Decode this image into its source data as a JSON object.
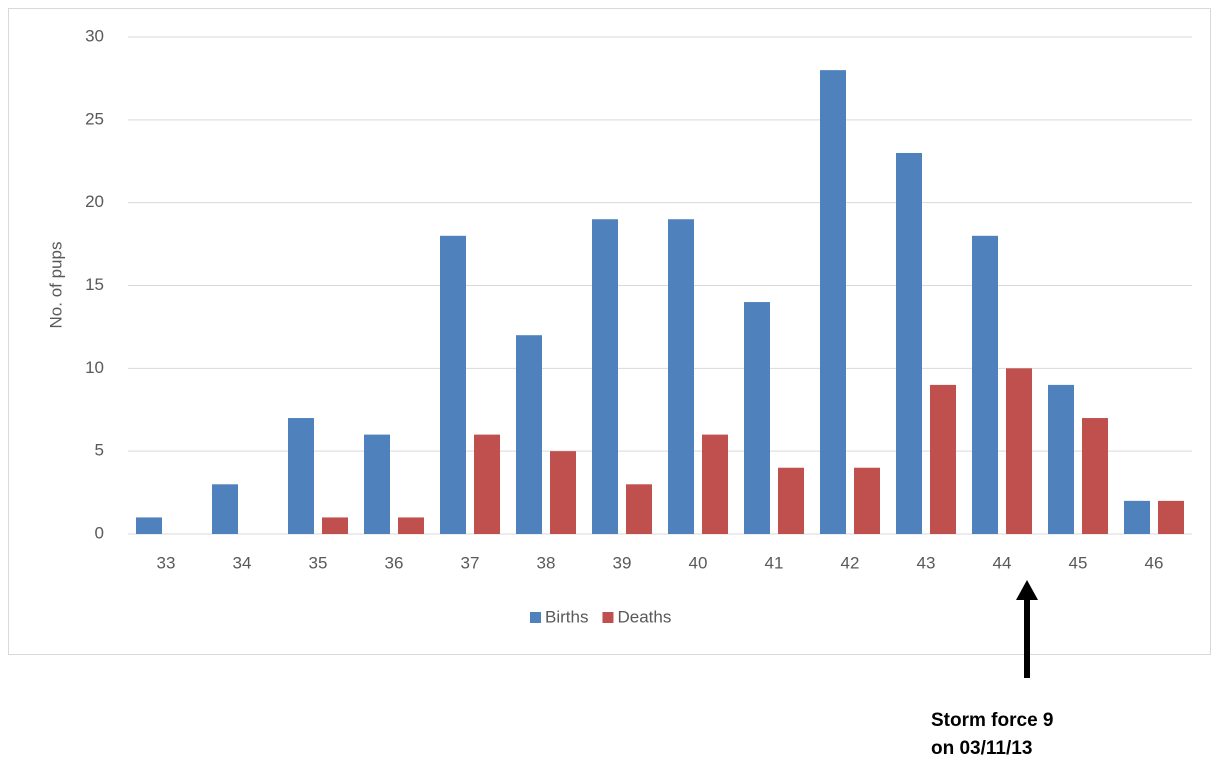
{
  "chart_data": {
    "type": "bar",
    "y_label": "No. of pups",
    "categories": [
      "33",
      "34",
      "35",
      "36",
      "37",
      "38",
      "39",
      "40",
      "41",
      "42",
      "43",
      "44",
      "45",
      "46"
    ],
    "series": [
      {
        "name": "Births",
        "color": "#4f81bd",
        "values": [
          1,
          3,
          7,
          6,
          18,
          12,
          19,
          19,
          14,
          28,
          23,
          18,
          9,
          2
        ]
      },
      {
        "name": "Deaths",
        "color": "#c0504d",
        "values": [
          0,
          0,
          1,
          1,
          6,
          5,
          3,
          6,
          4,
          4,
          9,
          10,
          7,
          2
        ]
      }
    ],
    "ylim": [
      0,
      30
    ],
    "yticks": [
      0,
      5,
      10,
      15,
      20,
      25,
      30
    ],
    "grid": true,
    "legend": "bottom",
    "annotation": [
      "Storm force 9",
      "on 03/11/13"
    ]
  }
}
